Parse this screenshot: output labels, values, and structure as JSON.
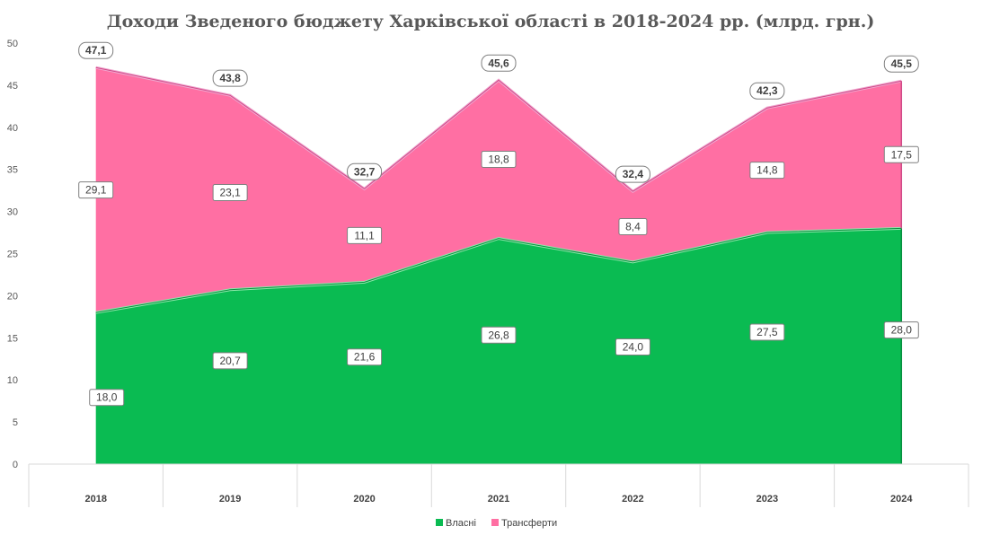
{
  "chart_data": {
    "type": "area",
    "stacked": true,
    "title": "Доходи Зведеного бюджету Харківської області в 2018-2024 рр. (млрд. грн.)",
    "categories": [
      "2018",
      "2019",
      "2020",
      "2021",
      "2022",
      "2023",
      "2024"
    ],
    "series": [
      {
        "name": "Власні",
        "values": [
          18.0,
          20.7,
          21.6,
          26.8,
          24.0,
          27.5,
          28.0
        ],
        "labels": [
          "18,0",
          "20,7",
          "21,6",
          "26,8",
          "24,0",
          "27,5",
          "28,0"
        ],
        "color": "#0abb52"
      },
      {
        "name": "Трансферти",
        "values": [
          29.1,
          23.1,
          11.1,
          18.8,
          8.4,
          14.8,
          17.5
        ],
        "labels": [
          "29,1",
          "23,1",
          "11,1",
          "18,8",
          "8,4",
          "14,8",
          "17,5"
        ],
        "color": "#ff6fa3"
      }
    ],
    "totals": [
      47.1,
      43.8,
      32.7,
      45.6,
      32.4,
      42.3,
      45.5
    ],
    "total_labels": [
      "47,1",
      "43,8",
      "32,7",
      "45,6",
      "32,4",
      "42,3",
      "45,5"
    ],
    "ylim": [
      0,
      50
    ],
    "yticks": [
      "0",
      "5",
      "10",
      "15",
      "20",
      "25",
      "30",
      "35",
      "40",
      "45",
      "50"
    ],
    "ytick_values": [
      0,
      5,
      10,
      15,
      20,
      25,
      30,
      35,
      40,
      45,
      50
    ],
    "legend_position": "bottom",
    "grid": false
  }
}
